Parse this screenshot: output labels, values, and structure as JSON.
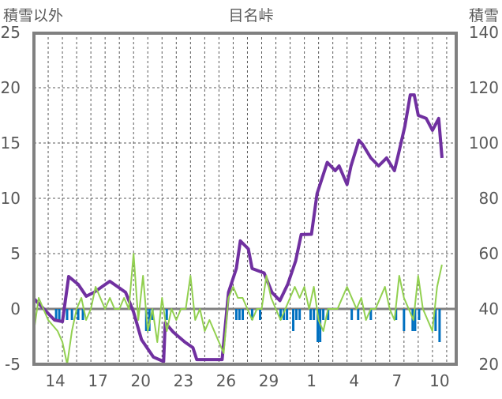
{
  "chart_data": {
    "type": "line",
    "title": "目名峠",
    "ylabel_left": "積雪以外",
    "ylabel_right": "積雪",
    "x_unit": "days since start of day 13",
    "xlim": [
      0,
      29.67
    ],
    "ylim_left": [
      -5,
      25
    ],
    "ylim_right": [
      20,
      140
    ],
    "yticks_left": [
      -5,
      0,
      5,
      10,
      15,
      20,
      25
    ],
    "yticks_right": [
      20,
      40,
      60,
      80,
      100,
      120,
      140
    ],
    "xticks": [
      {
        "label": "14",
        "x": 1.5
      },
      {
        "label": "17",
        "x": 4.5
      },
      {
        "label": "20",
        "x": 7.5
      },
      {
        "label": "23",
        "x": 10.5
      },
      {
        "label": "26",
        "x": 13.5
      },
      {
        "label": "29",
        "x": 16.5
      },
      {
        "label": "1",
        "x": 19.5
      },
      {
        "label": "4",
        "x": 22.5
      },
      {
        "label": "7",
        "x": 25.5
      },
      {
        "label": "10",
        "x": 28.5
      }
    ],
    "grid": {
      "vertical_daily": true,
      "horizontal": true,
      "style": "dashed"
    },
    "colors": {
      "snow": "#7030a0",
      "green": "#92d050",
      "blue": "#0070c0",
      "frame": "#808080"
    },
    "series": [
      {
        "name": "積雪",
        "axis": "right",
        "kind": "line",
        "color": "#7030a0",
        "points": [
          [
            0,
            43.7
          ],
          [
            1.44,
            36
          ],
          [
            2.0,
            35.4
          ],
          [
            2.44,
            51.7
          ],
          [
            3.11,
            48.9
          ],
          [
            3.67,
            44.6
          ],
          [
            4.22,
            46
          ],
          [
            5.33,
            50
          ],
          [
            5.89,
            48
          ],
          [
            6.44,
            46
          ],
          [
            7.0,
            38.9
          ],
          [
            7.56,
            28.9
          ],
          [
            8.39,
            22.6
          ],
          [
            9.11,
            21
          ],
          [
            9.22,
            35
          ],
          [
            9.78,
            31.7
          ],
          [
            10.61,
            28
          ],
          [
            11.17,
            26
          ],
          [
            11.44,
            21.7
          ],
          [
            13.22,
            21.7
          ],
          [
            13.67,
            46
          ],
          [
            14.22,
            54.6
          ],
          [
            14.5,
            64.6
          ],
          [
            15.06,
            61.7
          ],
          [
            15.33,
            54.6
          ],
          [
            16.17,
            53
          ],
          [
            16.72,
            46
          ],
          [
            17.28,
            43
          ],
          [
            17.83,
            48.9
          ],
          [
            18.39,
            57.4
          ],
          [
            18.78,
            66.9
          ],
          [
            19.5,
            67
          ],
          [
            19.89,
            81.7
          ],
          [
            20.61,
            93
          ],
          [
            21.17,
            90
          ],
          [
            21.44,
            91.7
          ],
          [
            22.0,
            85
          ],
          [
            22.28,
            91.7
          ],
          [
            22.83,
            101
          ],
          [
            23.11,
            99.4
          ],
          [
            23.67,
            94.6
          ],
          [
            24.22,
            91.7
          ],
          [
            24.78,
            94.6
          ],
          [
            25.33,
            90
          ],
          [
            25.61,
            96
          ],
          [
            26.06,
            106
          ],
          [
            26.44,
            117.4
          ],
          [
            26.72,
            117.4
          ],
          [
            27.0,
            110
          ],
          [
            27.56,
            108.9
          ],
          [
            28.0,
            104.6
          ],
          [
            28.44,
            108.9
          ],
          [
            28.67,
            94.6
          ]
        ]
      },
      {
        "name": "green",
        "axis": "left",
        "kind": "line",
        "color": "#92d050",
        "start": 0,
        "step": 0.3333,
        "values": [
          -2,
          1,
          0,
          -1,
          -1.5,
          -2,
          -3,
          -5,
          -2,
          0,
          1,
          -1,
          0,
          2,
          1,
          0,
          1,
          0,
          0,
          1,
          0,
          5,
          -1,
          3,
          -2,
          0,
          -3,
          1,
          -2,
          0,
          -1,
          0,
          0,
          3,
          -1,
          0,
          -2,
          -1,
          -2,
          -3,
          -4,
          1,
          2,
          1,
          1,
          0,
          -1,
          0,
          0,
          3,
          1,
          0,
          -1,
          0,
          1,
          2,
          1,
          2,
          0,
          2,
          -1,
          -2,
          0,
          0,
          0,
          1,
          2,
          1,
          0,
          1,
          -1,
          0,
          0,
          1,
          2,
          0,
          -1,
          3,
          1,
          0,
          -1,
          3,
          0,
          -1,
          -2,
          2,
          4
        ]
      },
      {
        "name": "blue",
        "axis": "left",
        "kind": "bar",
        "color": "#0070c0",
        "points": [
          [
            1.56,
            -1
          ],
          [
            1.78,
            -1
          ],
          [
            2.33,
            -1
          ],
          [
            2.67,
            -1
          ],
          [
            3.11,
            -1
          ],
          [
            3.44,
            -1
          ],
          [
            7.89,
            -2
          ],
          [
            8.11,
            -2
          ],
          [
            8.33,
            -1
          ],
          [
            9.33,
            -1
          ],
          [
            14.22,
            -1
          ],
          [
            14.44,
            -1
          ],
          [
            14.67,
            -1
          ],
          [
            15.33,
            -1
          ],
          [
            15.89,
            -1
          ],
          [
            17.33,
            -1
          ],
          [
            17.56,
            -1
          ],
          [
            17.78,
            -1
          ],
          [
            18.22,
            -2
          ],
          [
            18.44,
            -1
          ],
          [
            18.67,
            -1
          ],
          [
            19.44,
            -1
          ],
          [
            19.67,
            -1
          ],
          [
            19.94,
            -3
          ],
          [
            20.11,
            -3
          ],
          [
            20.33,
            -1
          ],
          [
            20.67,
            -1
          ],
          [
            22.33,
            -1
          ],
          [
            22.78,
            -1
          ],
          [
            23.67,
            -1
          ],
          [
            25.44,
            -1
          ],
          [
            26.0,
            -2
          ],
          [
            26.61,
            -2
          ],
          [
            26.78,
            -2
          ],
          [
            27.06,
            -1
          ],
          [
            28.22,
            -2
          ],
          [
            28.5,
            -3
          ]
        ]
      }
    ]
  }
}
